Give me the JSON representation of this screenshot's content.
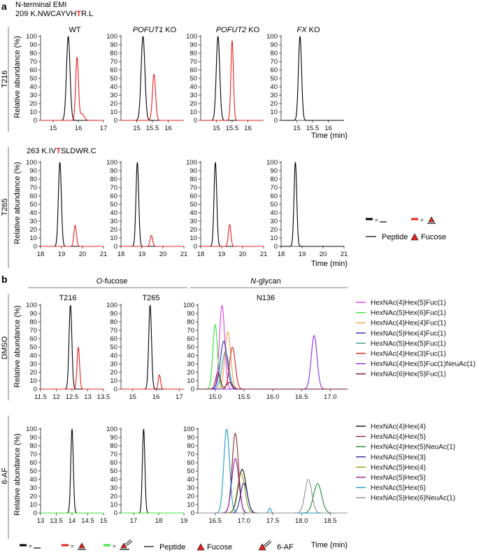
{
  "figure": {
    "panel_a_label": "a",
    "panel_b_label": "b",
    "a_header": "N-terminal EMI",
    "a_seq_t216": {
      "prefix": "209 K.NWCAYVH",
      "site": "T",
      "suffix": "R.L"
    },
    "a_seq_t265": {
      "prefix": "263 K.IV",
      "site": "T",
      "suffix": "SLDWR.C"
    },
    "a_columns": [
      {
        "name": "WT",
        "italic": "",
        "suffix": ""
      },
      {
        "name": "",
        "italic": "POFUT1",
        "suffix": " KO"
      },
      {
        "name": "",
        "italic": "POFUT2",
        "suffix": "  KO"
      },
      {
        "name": "",
        "italic": "FX",
        "suffix": "  KO"
      }
    ],
    "a_rows": [
      "T216",
      "T265"
    ],
    "b_groups": [
      {
        "italic": "O",
        "rest": "-fucose"
      },
      {
        "italic": "N",
        "rest": "-glycan"
      }
    ],
    "b_columns": [
      "T216",
      "T265",
      "N136"
    ],
    "b_rows": [
      "DMSO",
      "6-AF"
    ],
    "ylabel": "Relative abundance (%)",
    "xlabel": "Time (min)",
    "y_ticks": [
      "0",
      "10",
      "20",
      "30",
      "40",
      "50",
      "60",
      "70",
      "80",
      "90",
      "100"
    ],
    "legend_a": {
      "peptide": "Peptide",
      "fucose": "Fucose",
      "eq": "="
    },
    "legend_b": {
      "peptide": "Peptide",
      "fucose": "Fucose",
      "af": "6-AF",
      "eq": "="
    },
    "colors": {
      "peptide": "#000000",
      "fucose": "#e8201f",
      "af": "#3ee03a",
      "axis": "#222222"
    }
  },
  "chart_data": [
    {
      "type": "line",
      "title": "WT",
      "row": "T216",
      "xlim": [
        14.5,
        17
      ],
      "ylim": [
        0,
        100
      ],
      "x_ticks": [
        15,
        16,
        17
      ],
      "x_tick_labels": [
        "15",
        "16",
        "17"
      ],
      "series": [
        {
          "name": "Peptide",
          "color": "#000000",
          "peaks": [
            [
              15.6,
              100,
              0.07
            ]
          ]
        },
        {
          "name": "Fucose",
          "color": "#e8201f",
          "peaks": [
            [
              15.95,
              75,
              0.055
            ],
            [
              16.15,
              8,
              0.08
            ]
          ]
        }
      ]
    },
    {
      "type": "line",
      "title": "POFUT1 KO",
      "row": "T216",
      "xlim": [
        14.5,
        16.5
      ],
      "ylim": [
        0,
        100
      ],
      "x_ticks": [
        15,
        15.5,
        16
      ],
      "x_tick_labels": [
        "15",
        "15.5",
        "16"
      ],
      "series": [
        {
          "name": "Peptide",
          "color": "#000000",
          "peaks": [
            [
              15.2,
              100,
              0.06
            ]
          ]
        },
        {
          "name": "Fucose",
          "color": "#e8201f",
          "peaks": [
            [
              15.55,
              55,
              0.05
            ]
          ]
        }
      ]
    },
    {
      "type": "line",
      "title": "POFUT2 KO",
      "row": "T216",
      "xlim": [
        14.5,
        16.5
      ],
      "ylim": [
        0,
        100
      ],
      "x_ticks": [
        15,
        15.5,
        16
      ],
      "x_tick_labels": [
        "15",
        "15.5",
        "16"
      ],
      "series": [
        {
          "name": "Peptide",
          "color": "#000000",
          "peaks": [
            [
              15.05,
              100,
              0.055
            ]
          ]
        },
        {
          "name": "Fucose",
          "color": "#e8201f",
          "peaks": [
            [
              15.5,
              95,
              0.04
            ]
          ]
        }
      ]
    },
    {
      "type": "line",
      "title": "FX KO",
      "row": "T216",
      "xlim": [
        14.5,
        16.5
      ],
      "ylim": [
        0,
        100
      ],
      "x_ticks": [
        15,
        15.5,
        16
      ],
      "x_tick_labels": [
        "15",
        "15.5",
        "16"
      ],
      "series": [
        {
          "name": "Peptide",
          "color": "#000000",
          "peaks": [
            [
              15.1,
              100,
              0.05
            ]
          ]
        }
      ]
    },
    {
      "type": "line",
      "title": "WT",
      "row": "T265",
      "xlim": [
        18,
        21
      ],
      "ylim": [
        0,
        100
      ],
      "x_ticks": [
        18,
        19,
        20,
        21
      ],
      "x_tick_labels": [
        "18",
        "19",
        "20",
        "21"
      ],
      "series": [
        {
          "name": "Peptide",
          "color": "#000000",
          "peaks": [
            [
              18.92,
              100,
              0.07
            ]
          ]
        },
        {
          "name": "Fucose",
          "color": "#e8201f",
          "peaks": [
            [
              19.65,
              25,
              0.06
            ]
          ]
        }
      ]
    },
    {
      "type": "line",
      "title": "POFUT1 KO",
      "row": "T265",
      "xlim": [
        18,
        21
      ],
      "ylim": [
        0,
        100
      ],
      "x_ticks": [
        18,
        19,
        20,
        21
      ],
      "x_tick_labels": [
        "18",
        "19",
        "20",
        "21"
      ],
      "series": [
        {
          "name": "Peptide",
          "color": "#000000",
          "peaks": [
            [
              18.78,
              100,
              0.065
            ]
          ]
        },
        {
          "name": "Fucose",
          "color": "#e8201f",
          "peaks": [
            [
              19.45,
              13,
              0.06
            ]
          ]
        }
      ]
    },
    {
      "type": "line",
      "title": "POFUT2 KO",
      "row": "T265",
      "xlim": [
        18,
        21
      ],
      "ylim": [
        0,
        100
      ],
      "x_ticks": [
        18,
        19,
        20,
        21
      ],
      "x_tick_labels": [
        "18",
        "19",
        "20",
        "21"
      ],
      "series": [
        {
          "name": "Peptide",
          "color": "#000000",
          "peaks": [
            [
              18.7,
              100,
              0.065
            ]
          ]
        },
        {
          "name": "Fucose",
          "color": "#e8201f",
          "peaks": [
            [
              19.38,
              26,
              0.06
            ]
          ]
        }
      ]
    },
    {
      "type": "line",
      "title": "FX KO",
      "row": "T265",
      "xlim": [
        18,
        21
      ],
      "ylim": [
        0,
        100
      ],
      "x_ticks": [
        18,
        19,
        20,
        21
      ],
      "x_tick_labels": [
        "18",
        "19",
        "20",
        "21"
      ],
      "series": [
        {
          "name": "Peptide",
          "color": "#000000",
          "peaks": [
            [
              18.68,
              100,
              0.065
            ]
          ]
        }
      ]
    },
    {
      "type": "line",
      "title": "T216",
      "row": "DMSO",
      "xlim": [
        11.5,
        13.5
      ],
      "ylim": [
        0,
        100
      ],
      "x_ticks": [
        11.5,
        12,
        12.5,
        13,
        13.5
      ],
      "x_tick_labels": [
        "11.5",
        "12",
        "12.5",
        "13",
        "13.5"
      ],
      "series": [
        {
          "name": "Peptide",
          "color": "#000000",
          "peaks": [
            [
              12.45,
              100,
              0.045
            ]
          ]
        },
        {
          "name": "Fucose",
          "color": "#e8201f",
          "peaks": [
            [
              12.7,
              50,
              0.04
            ]
          ]
        }
      ]
    },
    {
      "type": "line",
      "title": "T265",
      "row": "DMSO",
      "xlim": [
        14.5,
        17.2
      ],
      "ylim": [
        0,
        100
      ],
      "x_ticks": [
        15,
        16,
        17
      ],
      "x_tick_labels": [
        "15",
        "16",
        "17"
      ],
      "series": [
        {
          "name": "Peptide",
          "color": "#000000",
          "peaks": [
            [
              15.75,
              100,
              0.06
            ]
          ]
        },
        {
          "name": "Fucose",
          "color": "#e8201f",
          "peaks": [
            [
              16.15,
              17,
              0.05
            ]
          ]
        }
      ]
    },
    {
      "type": "line",
      "title": "N136",
      "row": "DMSO",
      "xlim": [
        14.7,
        17.3
      ],
      "ylim": [
        0,
        100
      ],
      "x_ticks": [
        15,
        15.5,
        16,
        16.5,
        17
      ],
      "x_tick_labels": [
        "15.0",
        "15.5",
        "16.0",
        "16.5",
        "17.0"
      ],
      "series": [
        {
          "name": "HexNAc(4)Hex(5)Fuc(1)",
          "color": "#e040e0",
          "peaks": [
            [
              15.12,
              100,
              0.045
            ]
          ]
        },
        {
          "name": "HexNAc(5)Hex(6)Fuc(1)",
          "color": "#36e436",
          "peaks": [
            [
              15.0,
              77,
              0.04
            ]
          ]
        },
        {
          "name": "HexNAc(4)Hex(4)Fuc(1)",
          "color": "#f5a050",
          "peaks": [
            [
              15.22,
              68,
              0.05
            ]
          ]
        },
        {
          "name": "HexNAc(5)Hex(4)Fuc(1)",
          "color": "#2a2ab8",
          "peaks": [
            [
              15.15,
              57,
              0.06
            ]
          ]
        },
        {
          "name": "HexNAc(5)Hex(5)Fuc(1)",
          "color": "#3a9a9a",
          "peaks": [
            [
              15.18,
              45,
              0.06
            ]
          ]
        },
        {
          "name": "HexNAc(4)Hex(3)Fuc(1)",
          "color": "#e02020",
          "peaks": [
            [
              15.3,
              50,
              0.05
            ]
          ]
        },
        {
          "name": "HexNAc(4)Hex(5)Fuc(1)NeuAc(1)",
          "color": "#8a2be2",
          "peaks": [
            [
              16.72,
              64,
              0.05
            ]
          ]
        },
        {
          "name": "HexNAc(6)Hex(5)Fuc(1)",
          "color": "#7a1020",
          "peaks": [
            [
              15.05,
              20,
              0.04
            ],
            [
              15.25,
              8,
              0.05
            ]
          ]
        }
      ]
    },
    {
      "type": "line",
      "title": "T216",
      "row": "6-AF",
      "xlim": [
        13,
        15
      ],
      "ylim": [
        0,
        100
      ],
      "x_ticks": [
        13,
        13.5,
        14,
        14.5,
        15
      ],
      "x_tick_labels": [
        "13",
        "13.5",
        "14",
        "14.5",
        "15"
      ],
      "series": [
        {
          "name": "Peptide",
          "color": "#000000",
          "peaks": [
            [
              14.0,
              100,
              0.04
            ]
          ]
        },
        {
          "name": "6-AF",
          "color": "#3ee03a",
          "peaks": []
        }
      ]
    },
    {
      "type": "line",
      "title": "T265",
      "row": "6-AF",
      "xlim": [
        16.5,
        19
      ],
      "ylim": [
        0,
        100
      ],
      "x_ticks": [
        17,
        18,
        19
      ],
      "x_tick_labels": [
        "17",
        "18",
        "19"
      ],
      "series": [
        {
          "name": "Peptide",
          "color": "#000000",
          "peaks": [
            [
              17.4,
              100,
              0.05
            ]
          ]
        },
        {
          "name": "6-AF",
          "color": "#3ee03a",
          "peaks": []
        }
      ]
    },
    {
      "type": "line",
      "title": "N136",
      "row": "6-AF",
      "xlim": [
        16.2,
        18.8
      ],
      "ylim": [
        0,
        100
      ],
      "x_ticks": [
        16.5,
        17,
        17.5,
        18,
        18.5
      ],
      "x_tick_labels": [
        "16.5",
        "17.0",
        "17.5",
        "18.0",
        "18.5"
      ],
      "series": [
        {
          "name": "HexNAc(4)Hex(4)",
          "color": "#111111",
          "peaks": [
            [
              16.97,
              52,
              0.07
            ]
          ]
        },
        {
          "name": "HexNAc(4)Hex(5)",
          "color": "#8b2a2a",
          "peaks": [
            [
              16.85,
              95,
              0.055
            ]
          ]
        },
        {
          "name": "HexNAc(4)Hex(5)NeuAc(1)",
          "color": "#1f8a3a",
          "peaks": [
            [
              18.28,
              35,
              0.07
            ]
          ]
        },
        {
          "name": "HexNAc(5)Hex(3)",
          "color": "#202a9a",
          "peaks": [
            [
              17.0,
              36,
              0.06
            ]
          ]
        },
        {
          "name": "HexNAc(5)Hex(4)",
          "color": "#9a9a1a",
          "peaks": [
            [
              16.95,
              47,
              0.065
            ]
          ]
        },
        {
          "name": "HexNAc(5)Hex(5)",
          "color": "#9a1a9a",
          "peaks": [
            [
              16.85,
              65,
              0.06
            ]
          ]
        },
        {
          "name": "HexNAc(5)Hex(6)",
          "color": "#1a9ac8",
          "peaks": [
            [
              16.7,
              100,
              0.05
            ],
            [
              17.45,
              6,
              0.02
            ]
          ]
        },
        {
          "name": "HexNAc(5)Hex(6)NeuAc(1)",
          "color": "#909090",
          "peaks": [
            [
              18.12,
              40,
              0.06
            ]
          ]
        }
      ]
    }
  ]
}
